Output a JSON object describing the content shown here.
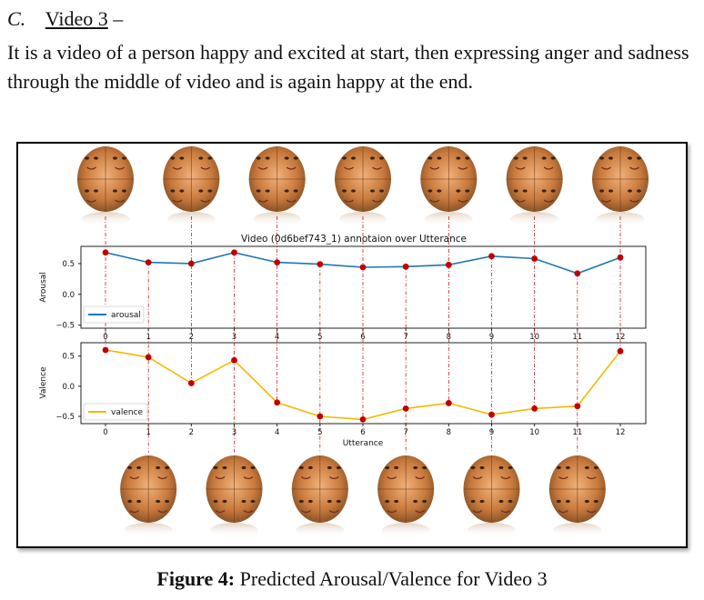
{
  "section": {
    "letter": "C.",
    "title": "Video 3",
    "dash": "–"
  },
  "paragraph": "It is a video of a person happy and excited at start, then expressing anger and sadness through the middle of video and is again happy at the end.",
  "caption": {
    "label": "Figure 4:",
    "text": "Predicted Arousal/Valence for Video 3"
  },
  "chart_data": {
    "title": "Video (0d6bef743_1) annotaion over Utterance",
    "x": [
      0,
      1,
      2,
      3,
      4,
      5,
      6,
      7,
      8,
      9,
      10,
      11,
      12
    ],
    "xlabel": "Utterance",
    "xticks": [
      "0",
      "1",
      "2",
      "3",
      "4",
      "5",
      "6",
      "7",
      "8",
      "9",
      "10",
      "11",
      "12"
    ],
    "panels": [
      {
        "type": "line",
        "ylabel": "Arousal",
        "ylim": [
          -0.55,
          0.78
        ],
        "yticks": [
          {
            "v": 0.5,
            "label": "0.5"
          },
          {
            "v": 0.0,
            "label": "0.0"
          },
          {
            "v": -0.5,
            "label": "−0.5"
          }
        ],
        "series": [
          {
            "name": "arousal",
            "color": "#1f77b4",
            "values": [
              0.68,
              0.52,
              0.5,
              0.68,
              0.52,
              0.49,
              0.44,
              0.45,
              0.48,
              0.62,
              0.58,
              0.34,
              0.6
            ]
          }
        ],
        "legend": "lower-left"
      },
      {
        "type": "line",
        "ylabel": "Valence",
        "ylim": [
          -0.62,
          0.72
        ],
        "yticks": [
          {
            "v": 0.5,
            "label": "0.5"
          },
          {
            "v": 0.0,
            "label": "0.0"
          },
          {
            "v": -0.5,
            "label": "−0.5"
          }
        ],
        "series": [
          {
            "name": "valence",
            "color": "#f5b800",
            "values": [
              0.6,
              0.48,
              0.05,
              0.43,
              -0.27,
              -0.5,
              -0.55,
              -0.37,
              -0.28,
              -0.47,
              -0.37,
              -0.33,
              0.58
            ]
          }
        ],
        "legend": "lower-left"
      }
    ],
    "marker_color": "#c00000",
    "top_faces_at": [
      0,
      2,
      4,
      6,
      8,
      10,
      12
    ],
    "bottom_faces_at": [
      1,
      3,
      5,
      7,
      9,
      11
    ],
    "grid": false
  }
}
